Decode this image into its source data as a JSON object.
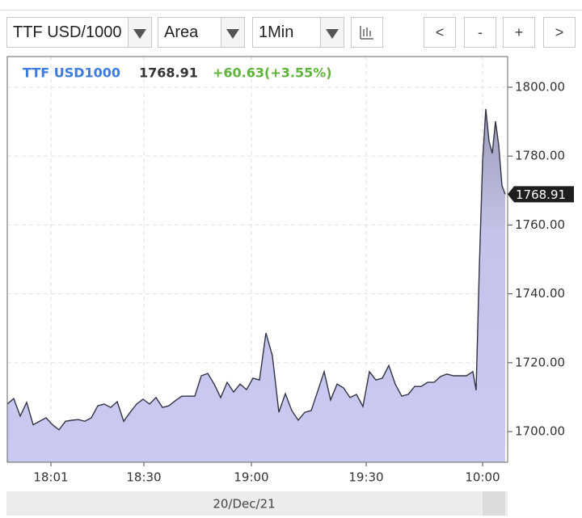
{
  "toolbar": {
    "symbol": "TTF USD/1000",
    "chart_type": "Area",
    "interval": "1Min",
    "buttons": [
      "<",
      "-",
      "+",
      ">"
    ]
  },
  "chart_data": {
    "type": "area",
    "quote": {
      "symbol": "TTF USD1000",
      "last": "1768.91",
      "change": "+60.63(+3.55%)"
    },
    "x": [
      0,
      2,
      4,
      6,
      8,
      10,
      12,
      14,
      16,
      18,
      20,
      22,
      24,
      26,
      28,
      30,
      32,
      34,
      36,
      38,
      40,
      42,
      44,
      46,
      48,
      50,
      52,
      54,
      56,
      58,
      60,
      62,
      64,
      66,
      68,
      70,
      72,
      74,
      76,
      78,
      80,
      82,
      84,
      86,
      88,
      90,
      92,
      94,
      96,
      98,
      100,
      102,
      104,
      106,
      108,
      110,
      112,
      114,
      116,
      118,
      120,
      122,
      124,
      126,
      128,
      130,
      132,
      134,
      136,
      138,
      140,
      142,
      144,
      145,
      146,
      147,
      148,
      149,
      150,
      151,
      152,
      153,
      154
    ],
    "values": [
      1708,
      1709.6,
      1704.5,
      1708.5,
      1702,
      1703,
      1704,
      1702,
      1700.5,
      1703,
      1703.3,
      1703.5,
      1703,
      1704,
      1707.5,
      1708,
      1707,
      1708.7,
      1703,
      1705.6,
      1708,
      1709.4,
      1708,
      1709.9,
      1707,
      1707.5,
      1709,
      1710.3,
      1710.3,
      1710.3,
      1716.2,
      1716.9,
      1713.8,
      1709.9,
      1714.3,
      1711.5,
      1713.8,
      1712.2,
      1715.5,
      1715,
      1728.6,
      1722,
      1705.6,
      1711,
      1706.1,
      1703.3,
      1705.6,
      1706.1,
      1711.7,
      1717.4,
      1709.2,
      1713.8,
      1712.7,
      1709.9,
      1710.8,
      1707.3,
      1717.4,
      1715,
      1715.5,
      1719.2,
      1713.8,
      1710.3,
      1710.8,
      1713.1,
      1713.1,
      1714.3,
      1714.3,
      1716,
      1716.7,
      1716.2,
      1716.2,
      1716.2,
      1717.4,
      1712,
      1747.9,
      1778.4,
      1793.7,
      1784.3,
      1780.8,
      1790.1,
      1783.1,
      1771.4,
      1768.91
    ],
    "fill_color": "#c9c9f2",
    "line_color": "#333344",
    "xlim": [
      0,
      154.75
    ],
    "xticks": [
      {
        "value": 13.5,
        "label": "18:01"
      },
      {
        "value": 42.25,
        "label": "18:30"
      },
      {
        "value": 75.5,
        "label": "19:00"
      },
      {
        "value": 111,
        "label": "19:30"
      },
      {
        "value": 147,
        "label": "10:00"
      }
    ],
    "ylim": [
      1691.1,
      1808.9
    ],
    "yticks": [
      {
        "value": 1700,
        "label": "1700.00"
      },
      {
        "value": 1720,
        "label": "1720.00"
      },
      {
        "value": 1740,
        "label": "1740.00"
      },
      {
        "value": 1760,
        "label": "1760.00"
      },
      {
        "value": 1780,
        "label": "1780.00"
      },
      {
        "value": 1800,
        "label": "1800.00"
      }
    ],
    "grid": true,
    "date_label": "20/Dec/21"
  }
}
